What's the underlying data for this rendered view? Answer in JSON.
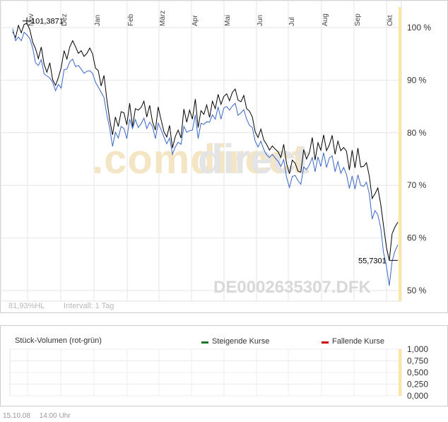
{
  "chart_data": [
    {
      "type": "line",
      "title": "",
      "instrument": "DE0002635307.DFK",
      "watermark": ".comdirect",
      "months": [
        "Nov",
        "Dez",
        "Jan",
        "Feb",
        "März",
        "Apr",
        "Mai",
        "Jun",
        "Jul",
        "Aug",
        "Sep",
        "Okt"
      ],
      "y_ticks": [
        "100 %",
        "90 %",
        "80 %",
        "70 %",
        "60 %",
        "50 %"
      ],
      "ylim": [
        48,
        104
      ],
      "y_unit": "%",
      "series": [
        {
          "color": "#000000",
          "values": [
            99.2,
            98.1,
            100.4,
            99.0,
            100.6,
            100.8,
            99.6,
            97.2,
            96.0,
            94.1,
            96.3,
            93.0,
            91.5,
            93.3,
            90.1,
            89.0,
            90.5,
            92.4,
            95.6,
            94.0,
            96.3,
            97.5,
            96.4,
            95.1,
            95.6,
            94.5,
            95.1,
            96.1,
            95.0,
            92.3,
            91.8,
            88.9,
            90.9,
            86.3,
            82.4,
            79.6,
            83.0,
            81.2,
            84.0,
            83.8,
            81.5,
            85.6,
            81.2,
            84.6,
            84.3,
            84.8,
            86.0,
            83.0,
            85.2,
            82.1,
            80.5,
            84.9,
            82.5,
            80.2,
            79.2,
            81.4,
            77.1,
            79.3,
            80.5,
            79.0,
            84.5,
            82.0,
            84.3,
            82.6,
            86.4,
            81.0,
            84.2,
            83.5,
            85.3,
            82.9,
            86.0,
            84.6,
            87.3,
            85.4,
            86.9,
            87.4,
            86.1,
            87.7,
            88.3,
            86.2,
            85.9,
            87.1,
            84.6,
            84.1,
            83.0,
            80.2,
            79.1,
            80.7,
            78.6,
            77.8,
            76.7,
            77.5,
            76.9,
            76.4,
            75.3,
            77.8,
            74.1,
            72.2,
            74.8,
            74.2,
            72.7,
            72.5,
            76.8,
            75.0,
            76.2,
            79.1,
            74.8,
            78.1,
            76.7,
            79.6,
            76.6,
            77.7,
            79.5,
            75.9,
            78.4,
            76.6,
            77.2,
            76.5,
            72.9,
            76.7,
            73.3,
            77.1,
            73.5,
            73.6,
            74.3,
            71.8,
            67.5,
            68.4,
            69.5,
            66.4,
            62.3,
            58.2,
            55.7,
            60.8,
            62.1,
            63.0
          ]
        },
        {
          "color": "#3a66c8",
          "values": [
            99.8,
            97.5,
            98.2,
            97.5,
            99.1,
            98.6,
            97.9,
            96.1,
            93.3,
            92.8,
            93.9,
            91.2,
            90.8,
            90.4,
            89.6,
            88.0,
            89.2,
            88.5,
            92.0,
            92.1,
            93.5,
            94.0,
            92.6,
            92.8,
            92.1,
            91.3,
            91.7,
            91.8,
            91.3,
            89.6,
            88.7,
            87.7,
            86.7,
            83.4,
            80.8,
            77.4,
            80.1,
            79.0,
            81.2,
            80.8,
            78.9,
            82.6,
            80.8,
            82.5,
            81.0,
            81.7,
            82.8,
            80.8,
            82.0,
            81.2,
            78.9,
            81.8,
            80.6,
            79.2,
            77.9,
            79.0,
            75.9,
            77.3,
            78.2,
            77.8,
            81.2,
            80.1,
            80.4,
            80.5,
            83.4,
            78.9,
            81.8,
            81.6,
            82.1,
            82.0,
            83.4,
            82.6,
            84.9,
            82.6,
            84.7,
            85.0,
            84.3,
            85.1,
            85.6,
            83.3,
            83.8,
            84.4,
            82.6,
            81.4,
            81.0,
            78.4,
            77.3,
            78.4,
            76.8,
            75.8,
            75.3,
            75.9,
            75.2,
            74.6,
            73.6,
            74.9,
            71.5,
            69.6,
            71.7,
            71.9,
            70.9,
            70.2,
            73.5,
            73.0,
            73.9,
            75.3,
            72.6,
            75.4,
            73.6,
            76.2,
            73.4,
            75.2,
            75.6,
            72.6,
            74.5,
            72.3,
            73.4,
            72.1,
            69.4,
            71.8,
            69.3,
            72.0,
            70.0,
            69.8,
            70.6,
            68.4,
            63.6,
            65.2,
            64.4,
            61.9,
            57.2,
            54.6,
            50.9,
            55.6,
            57.5,
            58.7
          ]
        }
      ],
      "annotations": [
        {
          "label": "101,3871",
          "value": 101.3871,
          "type": "high"
        },
        {
          "label": "55,7301",
          "value": 55.7301,
          "type": "low"
        }
      ],
      "bottom_left_text": "81,93%HL",
      "interval_text": "Intervall: 1 Tag",
      "grid": true
    },
    {
      "type": "bar",
      "title": "Stück-Volumen (rot-grün)",
      "legend": [
        {
          "label": "Steigende Kurse",
          "color": "#1a7a2a"
        },
        {
          "label": "Fallende Kurse",
          "color": "#cc0000"
        }
      ],
      "y_ticks": [
        "1,000",
        "0,750",
        "0,500",
        "0,250",
        "0,000"
      ],
      "ylim": [
        0,
        1
      ],
      "values": [],
      "grid": true
    }
  ],
  "footer": {
    "date": "15.10.08",
    "time": "14:00 Uhr"
  }
}
